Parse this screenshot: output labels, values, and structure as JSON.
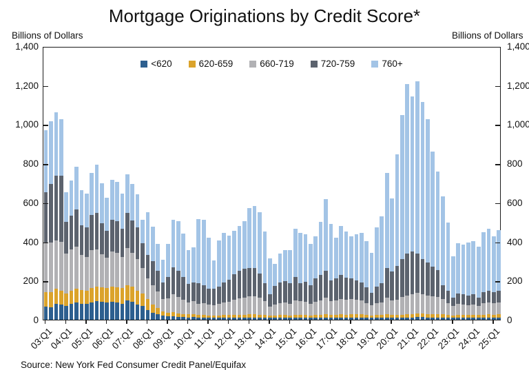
{
  "title": "Mortgage Originations by Credit Score*",
  "left_axis_label": "Billions of Dollars",
  "right_axis_label": "Billions of Dollars",
  "source": "Source: New York Fed Consumer Credit Panel/Equifax",
  "chart_data": {
    "type": "bar",
    "stacked": true,
    "title": "Mortgage Originations by Credit Score*",
    "xlabel": "",
    "ylabel": "Billions of Dollars",
    "ylim": [
      0,
      1400
    ],
    "grid": false,
    "legend_position": "top-center",
    "yticks": [
      0,
      200,
      400,
      600,
      800,
      1000,
      1200,
      1400
    ],
    "ytick_labels": [
      "0",
      "200",
      "400",
      "600",
      "800",
      "1,000",
      "1,200",
      "1,400"
    ],
    "x_tick_every": 4,
    "x_tick_labels": [
      "03:Q1",
      "04:Q1",
      "05:Q1",
      "06:Q1",
      "07:Q1",
      "08:Q1",
      "09:Q1",
      "10:Q1",
      "11:Q1",
      "12:Q1",
      "13:Q1",
      "14:Q1",
      "15:Q1",
      "16:Q1",
      "17:Q1",
      "18:Q1",
      "19:Q1",
      "20:Q1",
      "21:Q1",
      "22:Q1",
      "23:Q1",
      "24:Q1",
      "25:Q1"
    ],
    "categories": [
      "03:Q1",
      "03:Q2",
      "03:Q3",
      "03:Q4",
      "04:Q1",
      "04:Q2",
      "04:Q3",
      "04:Q4",
      "05:Q1",
      "05:Q2",
      "05:Q3",
      "05:Q4",
      "06:Q1",
      "06:Q2",
      "06:Q3",
      "06:Q4",
      "07:Q1",
      "07:Q2",
      "07:Q3",
      "07:Q4",
      "08:Q1",
      "08:Q2",
      "08:Q3",
      "08:Q4",
      "09:Q1",
      "09:Q2",
      "09:Q3",
      "09:Q4",
      "10:Q1",
      "10:Q2",
      "10:Q3",
      "10:Q4",
      "11:Q1",
      "11:Q2",
      "11:Q3",
      "11:Q4",
      "12:Q1",
      "12:Q2",
      "12:Q3",
      "12:Q4",
      "13:Q1",
      "13:Q2",
      "13:Q3",
      "13:Q4",
      "14:Q1",
      "14:Q2",
      "14:Q3",
      "14:Q4",
      "15:Q1",
      "15:Q2",
      "15:Q3",
      "15:Q4",
      "16:Q1",
      "16:Q2",
      "16:Q3",
      "16:Q4",
      "17:Q1",
      "17:Q2",
      "17:Q3",
      "17:Q4",
      "18:Q1",
      "18:Q2",
      "18:Q3",
      "18:Q4",
      "19:Q1",
      "19:Q2",
      "19:Q3",
      "19:Q4",
      "20:Q1",
      "20:Q2",
      "20:Q3",
      "20:Q4",
      "21:Q1",
      "21:Q2",
      "21:Q3",
      "21:Q4",
      "22:Q1",
      "22:Q2",
      "22:Q3",
      "22:Q4",
      "23:Q1",
      "23:Q2",
      "23:Q3",
      "23:Q4",
      "24:Q1",
      "24:Q2",
      "24:Q3",
      "24:Q4",
      "25:Q1",
      "25:Q2"
    ],
    "series": [
      {
        "name": "<620",
        "color": "#2d5f8f",
        "values": [
          68,
          65,
          82,
          76,
          71,
          82,
          88,
          82,
          82,
          88,
          94,
          91,
          88,
          91,
          88,
          82,
          98,
          91,
          76,
          71,
          51,
          35,
          27,
          20,
          18,
          18,
          15,
          13,
          12,
          13,
          11,
          11,
          10,
          10,
          10,
          10,
          10,
          10,
          10,
          11,
          11,
          11,
          10,
          10,
          9,
          9,
          10,
          10,
          9,
          10,
          10,
          10,
          9,
          10,
          10,
          11,
          10,
          10,
          11,
          11,
          11,
          11,
          11,
          10,
          9,
          10,
          10,
          11,
          10,
          10,
          11,
          12,
          12,
          13,
          13,
          12,
          12,
          12,
          12,
          11,
          9,
          10,
          10,
          10,
          10,
          10,
          11,
          11,
          11,
          11
        ]
      },
      {
        "name": "620-659",
        "color": "#dba32b",
        "values": [
          73,
          76,
          77,
          73,
          64,
          67,
          71,
          71,
          65,
          73,
          74,
          74,
          73,
          77,
          77,
          79,
          78,
          77,
          71,
          64,
          55,
          41,
          32,
          21,
          17,
          21,
          17,
          16,
          15,
          16,
          14,
          14,
          13,
          13,
          13,
          14,
          14,
          14,
          15,
          15,
          16,
          16,
          15,
          14,
          13,
          13,
          14,
          14,
          13,
          15,
          15,
          14,
          13,
          14,
          15,
          16,
          15,
          15,
          16,
          15,
          16,
          16,
          16,
          14,
          12,
          14,
          14,
          16,
          14,
          14,
          15,
          16,
          17,
          18,
          18,
          17,
          17,
          17,
          16,
          15,
          13,
          14,
          14,
          14,
          14,
          14,
          15,
          16,
          15,
          16
        ]
      },
      {
        "name": "660-719",
        "color": "#b1b1b4",
        "values": [
          250,
          253,
          247,
          251,
          203,
          210,
          214,
          180,
          175,
          195,
          191,
          170,
          155,
          180,
          178,
          160,
          190,
          175,
          165,
          130,
          105,
          100,
          85,
          65,
          75,
          90,
          85,
          75,
          62,
          65,
          57,
          58,
          55,
          52,
          58,
          63,
          68,
          78,
          83,
          88,
          93,
          93,
          88,
          73,
          45,
          55,
          60,
          63,
          60,
          73,
          70,
          68,
          60,
          68,
          75,
          85,
          70,
          75,
          80,
          75,
          78,
          75,
          72,
          62,
          52,
          62,
          66,
          85,
          75,
          80,
          90,
          95,
          100,
          105,
          100,
          95,
          90,
          88,
          78,
          60,
          48,
          56,
          53,
          50,
          52,
          48,
          57,
          60,
          57,
          60
        ]
      },
      {
        "name": "720-759",
        "color": "#5c636e",
        "values": [
          261,
          300,
          331,
          337,
          162,
          175,
          190,
          150,
          150,
          180,
          187,
          160,
          140,
          165,
          160,
          145,
          180,
          165,
          160,
          125,
          120,
          125,
          105,
          85,
          110,
          140,
          135,
          115,
          95,
          98,
          106,
          92,
          81,
          83,
          87,
          105,
          112,
          131,
          143,
          148,
          145,
          143,
          125,
          91,
          62,
          95,
          105,
          110,
          105,
          122,
          93,
          102,
          94,
          120,
          129,
          138,
          105,
          112,
          122,
          114,
          107,
          98,
          90,
          80,
          65,
          84,
          98,
          152,
          148,
          170,
          194,
          214,
          220,
          201,
          180,
          168,
          151,
          136,
          70,
          64,
          42,
          55,
          52,
          49,
          54,
          40,
          58,
          62,
          58,
          62
        ]
      },
      {
        "name": "760+",
        "color": "#a3c4e6",
        "values": [
          317,
          322,
          325,
          290,
          152,
          180,
          219,
          179,
          174,
          216,
          247,
          204,
          167,
          204,
          202,
          180,
          200,
          186,
          169,
          121,
          218,
          175,
          138,
          115,
          167,
          242,
          254,
          222,
          172,
          178,
          326,
          338,
          261,
          144,
          237,
          253,
          226,
          222,
          229,
          241,
          308,
          320,
          311,
          264,
          186,
          114,
          148,
          158,
          168,
          246,
          256,
          243,
          213,
          215,
          273,
          367,
          291,
          209,
          250,
          237,
          216,
          237,
          256,
          236,
          206,
          304,
          340,
          488,
          375,
          572,
          739,
          869,
          794,
          883,
          802,
          736,
          589,
          505,
          457,
          348,
          212,
          258,
          257,
          271,
          273,
          262,
          307,
          316,
          285,
          309
        ]
      }
    ]
  }
}
